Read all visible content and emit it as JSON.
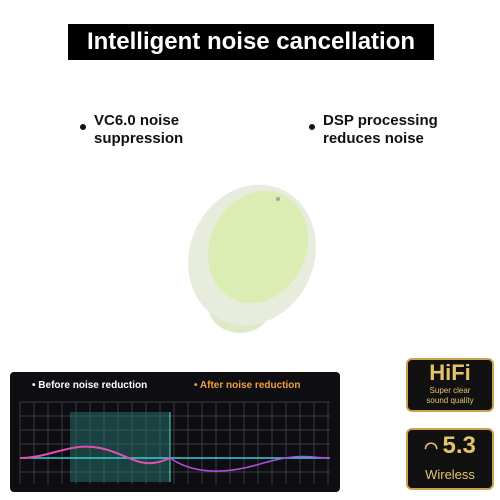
{
  "header": {
    "title": "Intelligent noise cancellation"
  },
  "features": [
    {
      "lines": [
        "VC6.0 noise",
        "suppression"
      ]
    },
    {
      "lines": [
        "DSP processing",
        "reduces noise"
      ]
    }
  ],
  "graph": {
    "before": "Before noise reduction",
    "after": "After noise reduction"
  },
  "badges": [
    {
      "title": "HiFi",
      "lines": [
        "Super clear",
        "sound quality"
      ]
    },
    {
      "title": "5.3",
      "subtitle": "Wireless"
    }
  ]
}
